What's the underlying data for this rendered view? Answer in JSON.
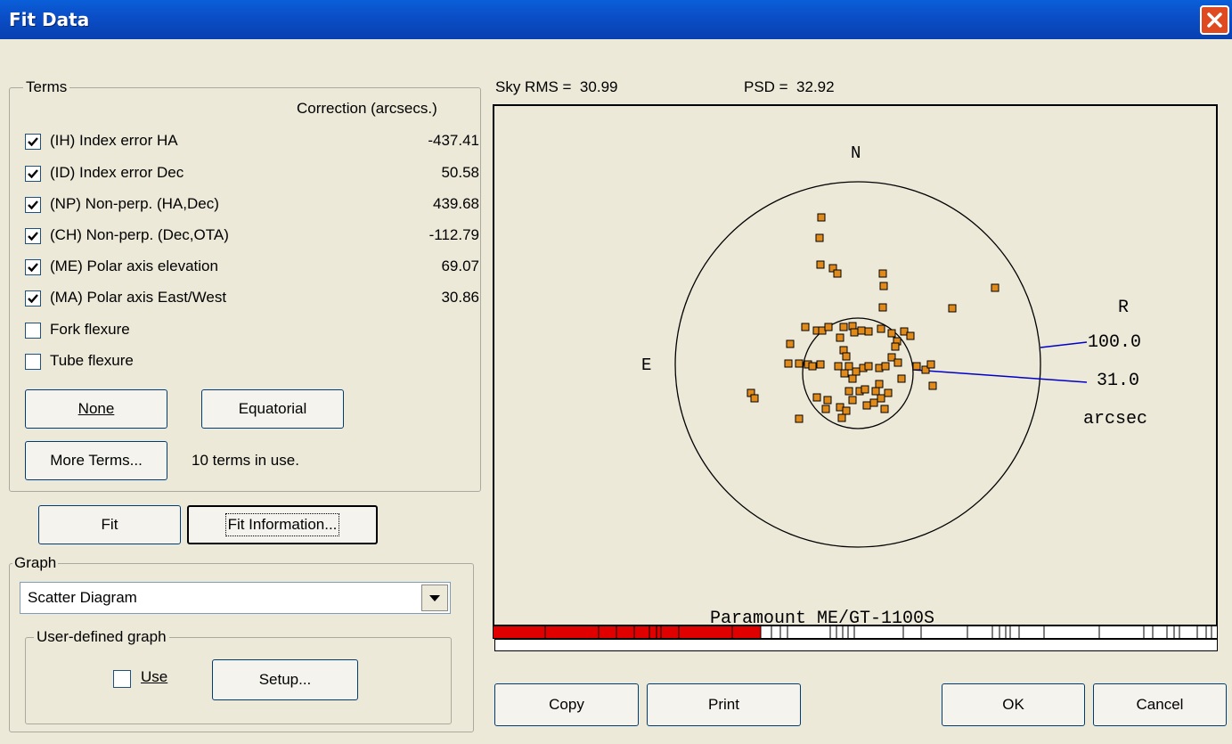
{
  "window": {
    "title": "Fit Data"
  },
  "terms": {
    "legend": "Terms",
    "correction_header": "Correction (arcsecs.)",
    "rows": [
      {
        "label": "(IH) Index error HA",
        "checked": true,
        "value": "-437.41"
      },
      {
        "label": "(ID) Index error Dec",
        "checked": true,
        "value": "50.58"
      },
      {
        "label": "(NP) Non-perp. (HA,Dec)",
        "checked": true,
        "value": "439.68"
      },
      {
        "label": "(CH) Non-perp. (Dec,OTA)",
        "checked": true,
        "value": "-112.79"
      },
      {
        "label": "(ME) Polar axis elevation",
        "checked": true,
        "value": "69.07"
      },
      {
        "label": "(MA) Polar axis East/West",
        "checked": true,
        "value": "30.86"
      },
      {
        "label": "Fork flexure",
        "checked": false,
        "value": ""
      },
      {
        "label": "Tube flexure",
        "checked": false,
        "value": ""
      }
    ],
    "none_button": "None",
    "equatorial_button": "Equatorial",
    "more_terms_button": "More Terms...",
    "terms_in_use": "10 terms in use."
  },
  "fit_button": "Fit",
  "fit_information_button": "Fit Information...",
  "graph": {
    "legend": "Graph",
    "selected": "Scatter Diagram",
    "user_defined": {
      "legend": "User-defined graph",
      "use_label": "Use",
      "use_checked": false,
      "setup_button": "Setup..."
    }
  },
  "stats": {
    "sky_rms": "Sky RMS =  30.99",
    "psd": "PSD =  32.92"
  },
  "plot": {
    "north": "N",
    "east": "E",
    "r_label": "R",
    "outer_radius": "100.0",
    "inner_radius": "31.0",
    "unit": "arcsec",
    "mount": "Paramount ME/GT-1100S",
    "progress_fraction": 0.37,
    "point_color": "#e08a1c"
  },
  "buttons": {
    "copy": "Copy",
    "print": "Print",
    "ok": "OK",
    "cancel": "Cancel"
  }
}
